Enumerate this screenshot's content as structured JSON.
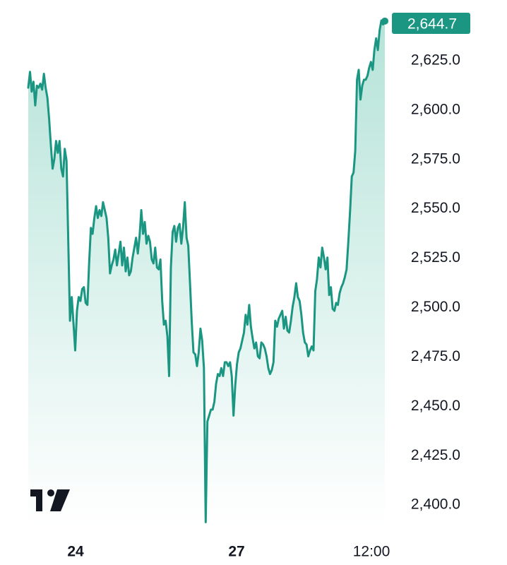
{
  "chart_data": {
    "type": "area",
    "title": "",
    "xlabel": "",
    "ylabel": "",
    "ylim": [
      2389,
      2650
    ],
    "x_ticks": [
      "24",
      "27",
      "12:00"
    ],
    "y_ticks": [
      "2,625.0",
      "2,600.0",
      "2,575.0",
      "2,550.0",
      "2,525.0",
      "2,500.0",
      "2,475.0",
      "2,450.0",
      "2,425.0",
      "2,400.0"
    ],
    "last_value_label": "2,644.7",
    "colors": {
      "line": "#1a9682",
      "label_bg": "#1a9682",
      "fill_top": "#b5e3d8",
      "fill_bottom": "#ffffff"
    },
    "logo": "tradingview-logo",
    "series": [
      {
        "values": [
          2611,
          2619,
          2609,
          2614,
          2602,
          2612,
          2611,
          2613,
          2610,
          2618,
          2611,
          2606,
          2595,
          2582,
          2570,
          2575,
          2584,
          2578,
          2584,
          2570,
          2566,
          2580,
          2574,
          2533,
          2493,
          2505,
          2492,
          2478,
          2498,
          2505,
          2503,
          2509,
          2510,
          2502,
          2501,
          2522,
          2540,
          2537,
          2545,
          2551,
          2545,
          2549,
          2546,
          2553,
          2549,
          2545,
          2535,
          2517,
          2521,
          2524,
          2529,
          2521,
          2527,
          2533,
          2521,
          2530,
          2518,
          2525,
          2516,
          2518,
          2525,
          2530,
          2535,
          2527,
          2536,
          2549,
          2537,
          2543,
          2532,
          2536,
          2533,
          2524,
          2522,
          2530,
          2520,
          2519,
          2524,
          2503,
          2491,
          2493,
          2485,
          2465,
          2520,
          2538,
          2541,
          2533,
          2540,
          2542,
          2532,
          2540,
          2553,
          2535,
          2531,
          2512,
          2492,
          2477,
          2476,
          2470,
          2477,
          2489,
          2483,
          2469,
          2391,
          2442,
          2445,
          2448,
          2448,
          2452,
          2461,
          2466,
          2465,
          2469,
          2465,
          2472,
          2472,
          2470,
          2472,
          2465,
          2445,
          2460,
          2471,
          2477,
          2479,
          2483,
          2487,
          2496,
          2491,
          2501,
          2490,
          2484,
          2479,
          2482,
          2475,
          2474,
          2482,
          2481,
          2479,
          2475,
          2469,
          2466,
          2468,
          2472,
          2493,
          2490,
          2494,
          2496,
          2498,
          2489,
          2495,
          2488,
          2487,
          2493,
          2500,
          2505,
          2512,
          2505,
          2503,
          2496,
          2487,
          2482,
          2481,
          2475,
          2478,
          2480,
          2478,
          2508,
          2514,
          2525,
          2520,
          2530,
          2525,
          2519,
          2525,
          2506,
          2510,
          2499,
          2498,
          2502,
          2501,
          2507,
          2510,
          2512,
          2515,
          2519,
          2533,
          2548,
          2566,
          2568,
          2579,
          2615,
          2620,
          2605,
          2612,
          2615,
          2615,
          2617,
          2621,
          2624,
          2620,
          2630,
          2636,
          2630,
          2640,
          2645,
          2643,
          2644.7
        ]
      }
    ]
  }
}
